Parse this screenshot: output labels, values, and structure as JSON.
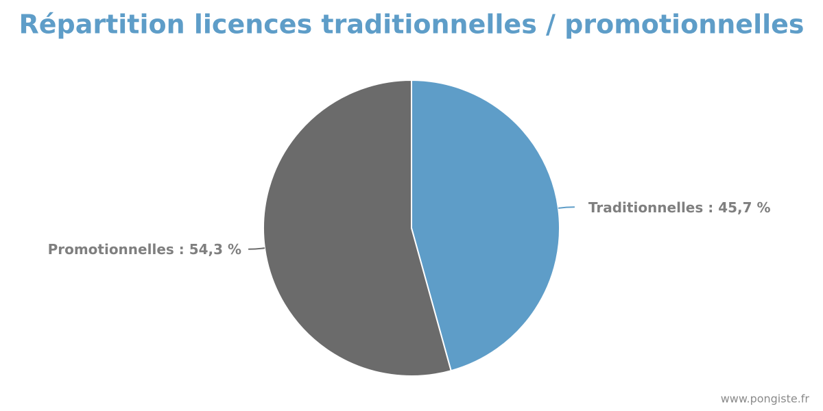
{
  "chart_data": {
    "type": "pie",
    "title": "Répartition licences traditionnelles / promotionnelles",
    "values": [
      45.7,
      54.3
    ],
    "value_labels": [
      "Traditionnelles : 45,7 %",
      "Promotionnelles : 54,3 %"
    ],
    "colors": [
      "#5e9dc8",
      "#6b6b6b"
    ],
    "watermark": "www.pongiste.fr"
  }
}
